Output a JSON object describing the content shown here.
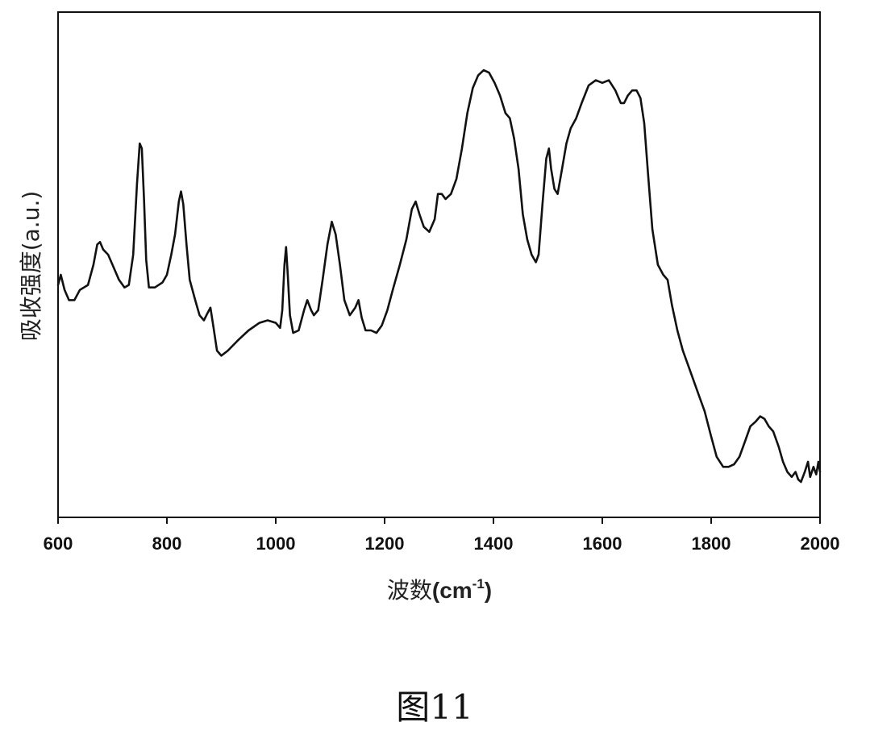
{
  "figure": {
    "caption": "图11"
  },
  "chart_data": {
    "type": "line",
    "xlabel_prefix": "波数",
    "xlabel_unit": "(cm",
    "xlabel_sup": "-1",
    "xlabel_close": ")",
    "ylabel": "吸收强度(a.u.)",
    "xlim": [
      600,
      2000
    ],
    "ylim": [
      0,
      1
    ],
    "xticks": [
      600,
      800,
      1000,
      1200,
      1400,
      1600,
      1800,
      2000
    ],
    "grid": false,
    "series": [
      {
        "color": "#111111",
        "points": [
          [
            600,
            0.46
          ],
          [
            605,
            0.48
          ],
          [
            612,
            0.45
          ],
          [
            620,
            0.43
          ],
          [
            630,
            0.43
          ],
          [
            640,
            0.45
          ],
          [
            655,
            0.46
          ],
          [
            665,
            0.5
          ],
          [
            672,
            0.54
          ],
          [
            677,
            0.545
          ],
          [
            683,
            0.53
          ],
          [
            692,
            0.52
          ],
          [
            700,
            0.5
          ],
          [
            712,
            0.47
          ],
          [
            722,
            0.455
          ],
          [
            730,
            0.46
          ],
          [
            738,
            0.52
          ],
          [
            745,
            0.66
          ],
          [
            750,
            0.74
          ],
          [
            754,
            0.73
          ],
          [
            758,
            0.63
          ],
          [
            762,
            0.51
          ],
          [
            767,
            0.455
          ],
          [
            778,
            0.455
          ],
          [
            792,
            0.465
          ],
          [
            800,
            0.48
          ],
          [
            808,
            0.52
          ],
          [
            815,
            0.56
          ],
          [
            822,
            0.625
          ],
          [
            826,
            0.645
          ],
          [
            830,
            0.62
          ],
          [
            836,
            0.54
          ],
          [
            842,
            0.47
          ],
          [
            852,
            0.43
          ],
          [
            860,
            0.4
          ],
          [
            868,
            0.39
          ],
          [
            875,
            0.405
          ],
          [
            880,
            0.415
          ],
          [
            885,
            0.38
          ],
          [
            892,
            0.33
          ],
          [
            900,
            0.32
          ],
          [
            912,
            0.33
          ],
          [
            930,
            0.35
          ],
          [
            950,
            0.37
          ],
          [
            970,
            0.385
          ],
          [
            985,
            0.39
          ],
          [
            1000,
            0.385
          ],
          [
            1008,
            0.375
          ],
          [
            1012,
            0.41
          ],
          [
            1016,
            0.5
          ],
          [
            1019,
            0.535
          ],
          [
            1022,
            0.48
          ],
          [
            1026,
            0.4
          ],
          [
            1032,
            0.365
          ],
          [
            1042,
            0.37
          ],
          [
            1052,
            0.41
          ],
          [
            1058,
            0.43
          ],
          [
            1065,
            0.41
          ],
          [
            1070,
            0.4
          ],
          [
            1078,
            0.41
          ],
          [
            1086,
            0.47
          ],
          [
            1095,
            0.54
          ],
          [
            1103,
            0.585
          ],
          [
            1110,
            0.56
          ],
          [
            1118,
            0.5
          ],
          [
            1126,
            0.43
          ],
          [
            1136,
            0.4
          ],
          [
            1146,
            0.415
          ],
          [
            1152,
            0.43
          ],
          [
            1158,
            0.395
          ],
          [
            1165,
            0.37
          ],
          [
            1175,
            0.37
          ],
          [
            1185,
            0.365
          ],
          [
            1195,
            0.38
          ],
          [
            1205,
            0.41
          ],
          [
            1215,
            0.45
          ],
          [
            1228,
            0.5
          ],
          [
            1240,
            0.55
          ],
          [
            1250,
            0.61
          ],
          [
            1257,
            0.625
          ],
          [
            1264,
            0.6
          ],
          [
            1272,
            0.575
          ],
          [
            1282,
            0.565
          ],
          [
            1292,
            0.59
          ],
          [
            1298,
            0.64
          ],
          [
            1305,
            0.64
          ],
          [
            1312,
            0.63
          ],
          [
            1322,
            0.64
          ],
          [
            1332,
            0.67
          ],
          [
            1342,
            0.73
          ],
          [
            1352,
            0.8
          ],
          [
            1362,
            0.85
          ],
          [
            1372,
            0.875
          ],
          [
            1382,
            0.885
          ],
          [
            1392,
            0.88
          ],
          [
            1402,
            0.86
          ],
          [
            1412,
            0.835
          ],
          [
            1422,
            0.8
          ],
          [
            1430,
            0.79
          ],
          [
            1438,
            0.75
          ],
          [
            1446,
            0.69
          ],
          [
            1454,
            0.6
          ],
          [
            1462,
            0.55
          ],
          [
            1470,
            0.52
          ],
          [
            1478,
            0.505
          ],
          [
            1483,
            0.52
          ],
          [
            1490,
            0.62
          ],
          [
            1497,
            0.71
          ],
          [
            1502,
            0.73
          ],
          [
            1506,
            0.69
          ],
          [
            1512,
            0.65
          ],
          [
            1518,
            0.64
          ],
          [
            1526,
            0.69
          ],
          [
            1534,
            0.74
          ],
          [
            1542,
            0.77
          ],
          [
            1552,
            0.79
          ],
          [
            1562,
            0.82
          ],
          [
            1575,
            0.855
          ],
          [
            1588,
            0.865
          ],
          [
            1600,
            0.86
          ],
          [
            1612,
            0.865
          ],
          [
            1624,
            0.845
          ],
          [
            1634,
            0.82
          ],
          [
            1640,
            0.82
          ],
          [
            1647,
            0.835
          ],
          [
            1655,
            0.845
          ],
          [
            1663,
            0.845
          ],
          [
            1670,
            0.83
          ],
          [
            1677,
            0.78
          ],
          [
            1684,
            0.68
          ],
          [
            1692,
            0.57
          ],
          [
            1702,
            0.5
          ],
          [
            1712,
            0.48
          ],
          [
            1720,
            0.47
          ],
          [
            1728,
            0.42
          ],
          [
            1738,
            0.37
          ],
          [
            1748,
            0.33
          ],
          [
            1758,
            0.3
          ],
          [
            1768,
            0.27
          ],
          [
            1778,
            0.24
          ],
          [
            1788,
            0.21
          ],
          [
            1800,
            0.16
          ],
          [
            1810,
            0.12
          ],
          [
            1822,
            0.1
          ],
          [
            1832,
            0.1
          ],
          [
            1842,
            0.105
          ],
          [
            1852,
            0.12
          ],
          [
            1862,
            0.15
          ],
          [
            1872,
            0.18
          ],
          [
            1882,
            0.19
          ],
          [
            1890,
            0.2
          ],
          [
            1898,
            0.195
          ],
          [
            1906,
            0.18
          ],
          [
            1914,
            0.17
          ],
          [
            1924,
            0.14
          ],
          [
            1932,
            0.11
          ],
          [
            1940,
            0.09
          ],
          [
            1948,
            0.08
          ],
          [
            1955,
            0.09
          ],
          [
            1960,
            0.075
          ],
          [
            1965,
            0.07
          ],
          [
            1972,
            0.09
          ],
          [
            1978,
            0.11
          ],
          [
            1982,
            0.08
          ],
          [
            1988,
            0.1
          ],
          [
            1993,
            0.085
          ],
          [
            1997,
            0.11
          ],
          [
            2000,
            0.09
          ]
        ]
      }
    ]
  }
}
